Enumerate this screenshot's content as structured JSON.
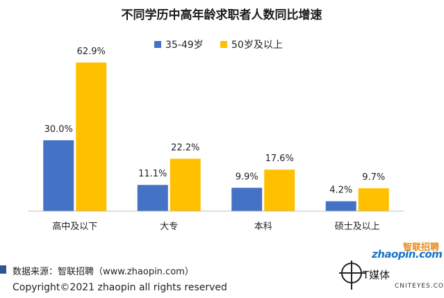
{
  "chart_data": {
    "type": "bar",
    "title": "不同学历中高年龄求职者人数同比增速",
    "categories": [
      "高中及以下",
      "大专",
      "本科",
      "硕士及以上"
    ],
    "series": [
      {
        "name": "35-49岁",
        "color": "#4472c4",
        "values": [
          30.0,
          11.1,
          9.9,
          4.2
        ],
        "labels": [
          "30.0%",
          "11.1%",
          "9.9%",
          "4.2%"
        ]
      },
      {
        "name": "50岁及以上",
        "color": "#ffc000",
        "values": [
          62.9,
          22.2,
          17.6,
          9.7
        ],
        "labels": [
          "62.9%",
          "22.2%",
          "17.6%",
          "9.7%"
        ]
      }
    ],
    "ylim": [
      0,
      70
    ],
    "grid": false,
    "legend": "top"
  },
  "footer": {
    "source": "数据来源：智联招聘（www.zhaopin.com）",
    "copyright": "Copyright©2021  zhaopin all rights reserved"
  },
  "watermark": {
    "brand": "zhaopin.com",
    "brand_cn": "智联招聘",
    "media": "T媒体",
    "site": "CNITEYES.COM"
  }
}
